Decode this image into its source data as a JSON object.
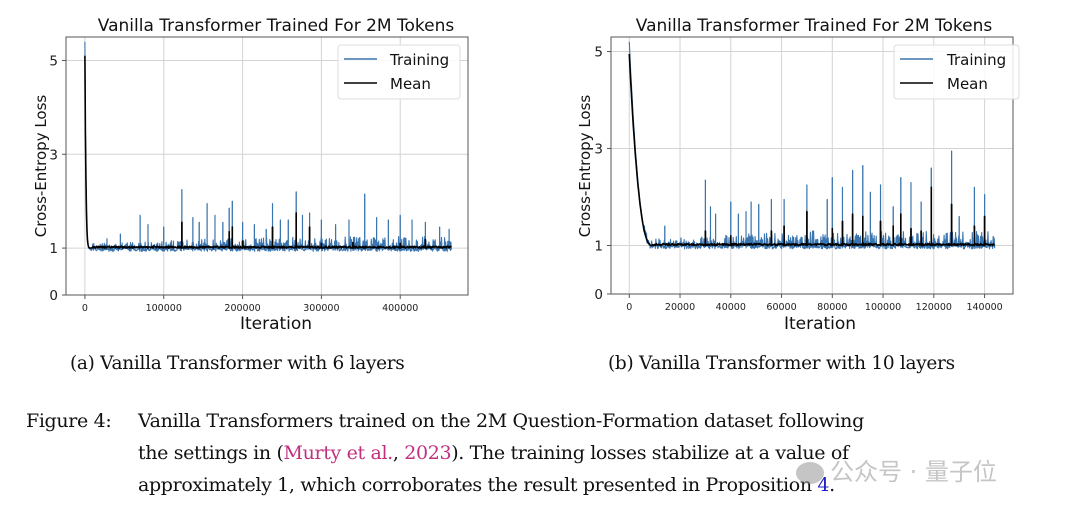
{
  "chart_data": [
    {
      "id": "a",
      "type": "line",
      "title": "Vanilla Transformer Trained For 2M Tokens",
      "xlabel": "Iteration",
      "ylabel": "Cross-Entropy Loss",
      "xlim": [
        -24000,
        486000
      ],
      "ylim": [
        0,
        5.5
      ],
      "xticks": [
        0,
        100000,
        200000,
        300000,
        400000
      ],
      "xtick_labels": [
        "0",
        "100000",
        "200000",
        "300000",
        "400000"
      ],
      "yticks": [
        0,
        1,
        3,
        5
      ],
      "ytick_labels": [
        "0",
        "1",
        "3",
        "5"
      ],
      "grid": true,
      "legend": {
        "placement": "top-right",
        "entries": [
          "Training",
          "Mean"
        ]
      },
      "series": [
        {
          "name": "Training",
          "color": "#3b75af",
          "x_end": 465000,
          "start_value": 5.4,
          "plateau": 1.0,
          "plateau_range": [
            0.93,
            1.25
          ],
          "decay_end": 8000,
          "spikes": [
            [
              28000,
              1.2
            ],
            [
              45000,
              1.3
            ],
            [
              70000,
              1.7
            ],
            [
              80000,
              1.5
            ],
            [
              100000,
              1.45
            ],
            [
              123000,
              2.25
            ],
            [
              137000,
              1.65
            ],
            [
              145000,
              1.55
            ],
            [
              155000,
              1.95
            ],
            [
              165000,
              1.7
            ],
            [
              175000,
              1.55
            ],
            [
              183000,
              1.85
            ],
            [
              187000,
              2.0
            ],
            [
              200000,
              1.55
            ],
            [
              215000,
              1.5
            ],
            [
              230000,
              1.4
            ],
            [
              238000,
              1.95
            ],
            [
              248000,
              1.6
            ],
            [
              258000,
              1.6
            ],
            [
              268000,
              2.2
            ],
            [
              276000,
              1.7
            ],
            [
              285000,
              1.75
            ],
            [
              300000,
              1.6
            ],
            [
              318000,
              1.5
            ],
            [
              335000,
              1.6
            ],
            [
              355000,
              2.15
            ],
            [
              370000,
              1.65
            ],
            [
              385000,
              1.6
            ],
            [
              400000,
              1.7
            ],
            [
              415000,
              1.6
            ],
            [
              432000,
              1.55
            ],
            [
              450000,
              1.45
            ],
            [
              462000,
              1.4
            ]
          ]
        },
        {
          "name": "Mean",
          "color": "#000000",
          "x_end": 465000,
          "start_value": 5.1,
          "plateau": 1.0,
          "decay_end": 8000,
          "spikes": [
            [
              123000,
              1.55
            ],
            [
              183000,
              1.35
            ],
            [
              187000,
              1.45
            ],
            [
              200000,
              1.15
            ],
            [
              238000,
              1.45
            ],
            [
              268000,
              1.75
            ],
            [
              285000,
              1.45
            ],
            [
              300000,
              1.1
            ],
            [
              340000,
              1.12
            ],
            [
              400000,
              1.1
            ],
            [
              432000,
              1.18
            ]
          ]
        }
      ]
    },
    {
      "id": "b",
      "type": "line",
      "title": "Vanilla Transformer Trained For 2M Tokens",
      "xlabel": "Iteration",
      "ylabel": "Cross-Entropy Loss",
      "xlim": [
        -7200,
        151200
      ],
      "ylim": [
        0,
        5.3
      ],
      "xticks": [
        0,
        20000,
        40000,
        60000,
        80000,
        100000,
        120000,
        140000
      ],
      "xtick_labels": [
        "0",
        "20000",
        "40000",
        "60000",
        "80000",
        "100000",
        "120000",
        "140000"
      ],
      "yticks": [
        0,
        1,
        3,
        5
      ],
      "ytick_labels": [
        "0",
        "1",
        "3",
        "5"
      ],
      "grid": true,
      "legend": {
        "placement": "top-right",
        "entries": [
          "Training",
          "Mean"
        ]
      },
      "series": [
        {
          "name": "Training",
          "color": "#3b75af",
          "x_end": 144000,
          "start_value": 5.2,
          "plateau": 1.0,
          "plateau_range": [
            0.93,
            1.3
          ],
          "decay_end": 9000,
          "spikes": [
            [
              14000,
              1.4
            ],
            [
              30000,
              2.35
            ],
            [
              32000,
              1.8
            ],
            [
              34000,
              1.65
            ],
            [
              40000,
              1.9
            ],
            [
              43000,
              1.65
            ],
            [
              46000,
              1.7
            ],
            [
              48000,
              1.9
            ],
            [
              51000,
              1.85
            ],
            [
              56000,
              1.95
            ],
            [
              61000,
              1.95
            ],
            [
              70000,
              2.25
            ],
            [
              78000,
              1.95
            ],
            [
              80000,
              2.4
            ],
            [
              84000,
              2.2
            ],
            [
              88000,
              2.55
            ],
            [
              92000,
              2.65
            ],
            [
              95000,
              2.1
            ],
            [
              99000,
              2.25
            ],
            [
              104000,
              1.8
            ],
            [
              107000,
              2.4
            ],
            [
              111000,
              2.3
            ],
            [
              115000,
              1.9
            ],
            [
              119000,
              2.6
            ],
            [
              127000,
              2.95
            ],
            [
              130000,
              1.6
            ],
            [
              136000,
              2.2
            ],
            [
              140000,
              2.05
            ]
          ]
        },
        {
          "name": "Mean",
          "color": "#000000",
          "x_end": 144000,
          "start_value": 4.95,
          "plateau": 1.0,
          "decay_end": 9000,
          "spikes": [
            [
              30000,
              1.3
            ],
            [
              40000,
              1.2
            ],
            [
              56000,
              1.3
            ],
            [
              61000,
              1.4
            ],
            [
              70000,
              1.7
            ],
            [
              80000,
              1.35
            ],
            [
              84000,
              1.5
            ],
            [
              88000,
              1.65
            ],
            [
              92000,
              1.6
            ],
            [
              99000,
              1.5
            ],
            [
              104000,
              1.4
            ],
            [
              107000,
              1.65
            ],
            [
              111000,
              1.35
            ],
            [
              115000,
              1.3
            ],
            [
              119000,
              2.2
            ],
            [
              127000,
              1.85
            ],
            [
              136000,
              1.4
            ],
            [
              140000,
              1.6
            ]
          ]
        }
      ]
    }
  ],
  "captions": {
    "sub_a": "(a) Vanilla Transformer with 6 layers",
    "sub_b": "(b) Vanilla Transformer with 10 layers",
    "figure_label": "Figure 4:",
    "line1": "Vanilla Transformers trained on the 2M Question-Formation dataset following",
    "line2_pre": "the settings in (",
    "line2_cite_author": "Murty et al.",
    "line2_comma": ", ",
    "line2_cite_year": "2023",
    "line2_post": ").  The training losses stabilize at a value of",
    "line3_pre": "approximately 1, which corroborates the result presented in Proposition ",
    "line3_ref": "4",
    "line3_post": "."
  },
  "watermark": {
    "text": "公众号 · 量子位"
  },
  "colors": {
    "training": "#3b75af",
    "mean": "#000000",
    "citation": "#c0307e",
    "reference": "#2020c0"
  }
}
